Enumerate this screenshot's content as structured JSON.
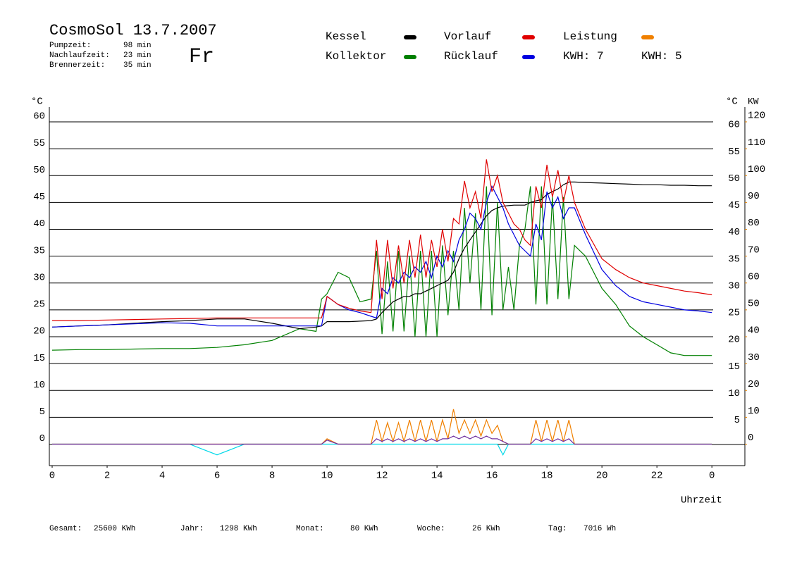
{
  "chart_data": {
    "type": "line",
    "title": "CosmoSol 13.7.2007",
    "weekday": "Fr",
    "info": [
      {
        "label": "Pumpzeit:",
        "value": "98 min"
      },
      {
        "label": "Nachlaufzeit:",
        "value": "23 min"
      },
      {
        "label": "Brennerzeit:",
        "value": "35 min"
      }
    ],
    "annotations": [
      {
        "text": "KWH: 7",
        "color": "#e08000"
      },
      {
        "text": "KWH: 5",
        "color": "#7030a0"
      }
    ],
    "y_label": "°C",
    "y_right_label": "°C",
    "y2_label": "KW",
    "x_label": "Uhrzeit",
    "footer": [
      {
        "label": "Gesamt:",
        "value": "25600 KWh"
      },
      {
        "label": "Jahr:",
        "value": "1298 KWh"
      },
      {
        "label": "Monat:",
        "value": "80 KWh"
      },
      {
        "label": "Woche:",
        "value": "26 KWh"
      },
      {
        "label": "Tag:",
        "value": "7016 Wh"
      }
    ],
    "xlim": [
      0,
      25.2
    ],
    "xticks": [
      0,
      2,
      4,
      6,
      8,
      10,
      12,
      14,
      16,
      18,
      20,
      22,
      {
        "value": 24,
        "label": "0"
      }
    ],
    "ylim": [
      -4,
      62.75
    ],
    "yticks": [
      0,
      5,
      10,
      15,
      20,
      25,
      30,
      35,
      40,
      45,
      50,
      55,
      60
    ],
    "yticks_right": [
      5,
      10,
      15,
      20,
      25,
      30,
      35,
      40,
      45,
      50,
      55,
      60
    ],
    "y2lim": [
      -8,
      125.5
    ],
    "y2ticks": [
      0,
      10,
      20,
      30,
      40,
      50,
      60,
      70,
      80,
      90,
      100,
      110,
      120
    ],
    "y2color": "#e08000",
    "grid": true,
    "x": [
      0,
      1,
      2,
      3,
      4,
      5,
      6,
      7,
      8,
      9,
      9.6,
      9.8,
      10,
      10.4,
      10.8,
      11.2,
      11.6,
      11.8,
      12,
      12.2,
      12.4,
      12.6,
      12.8,
      13,
      13.2,
      13.4,
      13.6,
      13.8,
      14,
      14.2,
      14.4,
      14.6,
      14.8,
      15,
      15.2,
      15.4,
      15.6,
      15.8,
      16,
      16.2,
      16.4,
      16.6,
      16.8,
      17,
      17.2,
      17.4,
      17.6,
      17.8,
      18,
      18.2,
      18.4,
      18.6,
      18.8,
      19,
      19.4,
      20,
      20.5,
      21,
      21.5,
      22,
      22.5,
      23,
      23.5,
      24
    ],
    "series": [
      {
        "name": "Kessel",
        "color": "#000000",
        "values": [
          21.8,
          22,
          22.2,
          22.5,
          22.8,
          23,
          23.3,
          23.3,
          22.5,
          21.5,
          21.8,
          22,
          22.8,
          22.8,
          22.8,
          22.9,
          23,
          23.3,
          24.5,
          25.5,
          26.5,
          27,
          27.5,
          27.5,
          28,
          28,
          28.5,
          29,
          29.5,
          30,
          30.5,
          32,
          34.5,
          36.5,
          38,
          39.5,
          41,
          42.5,
          43.5,
          44,
          44.3,
          44.4,
          44.5,
          44.5,
          44.5,
          45,
          45.3,
          45.5,
          46.5,
          47,
          47.5,
          48.3,
          48.8,
          48.8,
          48.7,
          48.6,
          48.5,
          48.4,
          48.3,
          48.3,
          48.2,
          48.2,
          48.1,
          48.1
        ]
      },
      {
        "name": "Kollektor",
        "color": "#008000",
        "values": [
          17.5,
          17.6,
          17.6,
          17.7,
          17.8,
          17.8,
          18,
          18.5,
          19.3,
          21.5,
          21,
          27,
          28,
          32,
          31,
          26.5,
          27,
          36,
          20.5,
          34,
          21,
          36,
          21,
          35,
          20,
          36,
          20,
          36,
          20,
          37,
          24,
          36,
          25,
          44,
          30,
          43,
          25,
          48,
          24,
          45,
          25,
          33,
          25,
          37,
          40,
          48,
          26,
          48,
          26,
          46,
          27,
          46,
          27,
          37,
          35,
          29,
          26,
          22,
          20,
          18.5,
          17,
          16.5,
          16.5,
          16.5
        ]
      },
      {
        "name": "Vorlauf",
        "color": "#e00000",
        "values": [
          23,
          23,
          23.1,
          23.2,
          23.3,
          23.4,
          23.5,
          23.5,
          23.5,
          23.5,
          23.5,
          23.5,
          27.5,
          26,
          25.3,
          24.8,
          24.5,
          38,
          27,
          38,
          29,
          37,
          30,
          38,
          31,
          39,
          31,
          38,
          33,
          40,
          34,
          42,
          41,
          49,
          44,
          47,
          42,
          53,
          47,
          50,
          45,
          43,
          41,
          40,
          38,
          37,
          48,
          44,
          52,
          46,
          51,
          45,
          50,
          45,
          40,
          34.5,
          32.5,
          31,
          30,
          29.5,
          29,
          28.5,
          28.2,
          27.8
        ]
      },
      {
        "name": "Rücklauf",
        "color": "#0000e0",
        "values": [
          21.8,
          22,
          22.2,
          22.4,
          22.6,
          22.5,
          22,
          22,
          22,
          22,
          22,
          22,
          27.5,
          26,
          25,
          24.5,
          23.8,
          23.5,
          29,
          28,
          31,
          30,
          32,
          31,
          33,
          32,
          34,
          31,
          35,
          33,
          36,
          34,
          38,
          40,
          43,
          42,
          40,
          45,
          48,
          46,
          44,
          41,
          39,
          37,
          36,
          35,
          41,
          38,
          47,
          44,
          46,
          42,
          44,
          44,
          39,
          32.5,
          29.5,
          27.5,
          26.5,
          26,
          25.5,
          25,
          24.8,
          24.5
        ]
      },
      {
        "name": "Leistung",
        "color": "#f08000",
        "axis": "y2",
        "values": [
          0,
          0,
          0,
          0,
          0,
          0,
          0,
          0,
          0,
          0,
          0,
          0,
          2,
          0,
          0,
          0,
          0,
          9,
          1,
          8,
          1,
          8,
          1,
          9,
          1,
          9,
          1,
          9,
          1,
          9,
          2,
          13,
          4,
          9,
          4,
          9,
          3,
          9,
          4,
          7,
          1,
          0,
          0,
          0,
          0,
          0,
          9,
          1,
          9,
          1,
          9,
          1,
          9,
          0,
          0,
          0,
          0,
          0,
          0,
          0,
          0,
          0,
          0,
          0
        ]
      },
      {
        "color": "#7030a0",
        "axis": "y2",
        "values": [
          0,
          0,
          0,
          0,
          0,
          0,
          0,
          0,
          0,
          0,
          0,
          0,
          1.5,
          0,
          0,
          0,
          0,
          2,
          1,
          2,
          1,
          2,
          1,
          2,
          1,
          2,
          1,
          2,
          1,
          2,
          2,
          3,
          2,
          3,
          2,
          3,
          2,
          3,
          2,
          2,
          1,
          0,
          0,
          0,
          0,
          0,
          2,
          1,
          2,
          1,
          2,
          1,
          2,
          0,
          0,
          0,
          0,
          0,
          0,
          0,
          0,
          0,
          0,
          0
        ]
      },
      {
        "color": "#00d8e8",
        "values": [
          0,
          0,
          0,
          0,
          0,
          0,
          -2,
          0,
          0,
          0,
          0,
          0,
          0,
          0,
          0,
          0,
          0,
          0,
          0,
          0,
          0,
          0,
          0,
          0,
          0,
          0,
          0,
          0,
          0,
          0,
          0,
          0,
          0,
          0,
          0,
          0,
          0,
          0,
          0,
          0,
          -2,
          0,
          0,
          0,
          0,
          0,
          0,
          0,
          0,
          0,
          0,
          0,
          0,
          0,
          0,
          0,
          0,
          0,
          0,
          0,
          0,
          0,
          0,
          0
        ]
      }
    ]
  }
}
